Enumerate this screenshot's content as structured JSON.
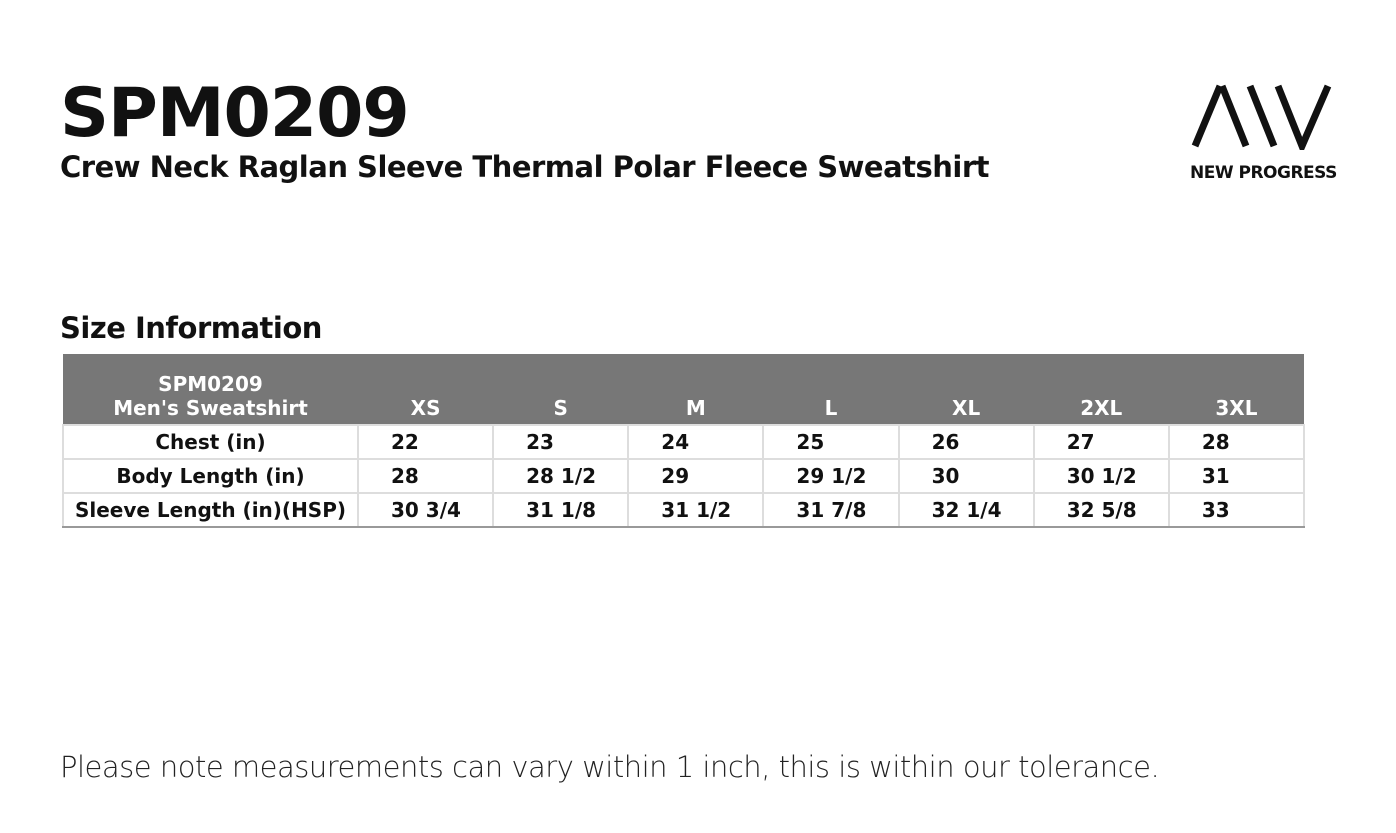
{
  "header": {
    "title": "SPM0209",
    "subtitle": "Crew Neck Raglan Sleeve Thermal Polar Fleece Sweatshirt"
  },
  "logo": {
    "text": "NEW PROGRESS"
  },
  "section_title": "Size Information",
  "table": {
    "corner": [
      "SPM0209",
      "Men's Sweatshirt"
    ],
    "columns": [
      "XS",
      "S",
      "M",
      "L",
      "XL",
      "2XL",
      "3XL"
    ],
    "rows": [
      {
        "label": "Chest (in)",
        "values": [
          "22",
          "23",
          "24",
          "25",
          "26",
          "27",
          "28"
        ]
      },
      {
        "label": "Body Length (in)",
        "values": [
          "28",
          "28 1/2",
          "29",
          "29 1/2",
          "30",
          "30 1/2",
          "31"
        ]
      },
      {
        "label": "Sleeve Length (in)(HSP)",
        "values": [
          "30 3/4",
          "31 1/8",
          "31 1/2",
          "31 7/8",
          "32 1/4",
          "32 5/8",
          "33"
        ]
      }
    ]
  },
  "footnote": "Please note measurements can vary within 1 inch, this is within our tolerance."
}
